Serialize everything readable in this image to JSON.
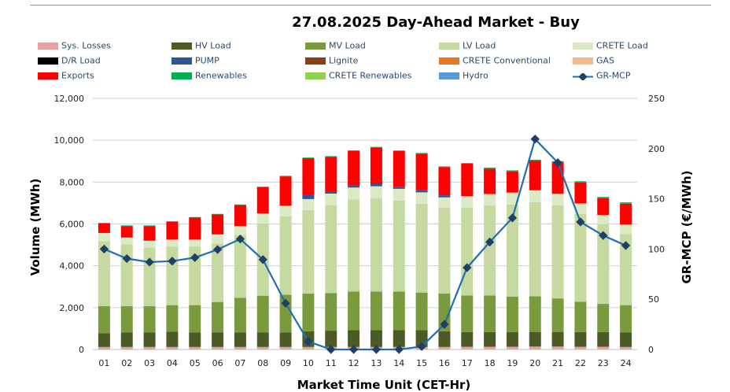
{
  "chart_data": {
    "type": "bar",
    "title": "27.08.2025  Day-Ahead Market - Buy",
    "xlabel": "Market Time Unit (CET-Hr)",
    "ylabel": "Volume (MWh)",
    "y2label": "GR-MCP (€/MWh)",
    "ylim": [
      0,
      12000
    ],
    "y2lim": [
      0,
      250
    ],
    "yticks": [
      "0",
      "2,000",
      "4,000",
      "6,000",
      "8,000",
      "10,000",
      "12,000"
    ],
    "y2ticks": [
      "0",
      "50",
      "100",
      "150",
      "200",
      "250"
    ],
    "categories": [
      "01",
      "02",
      "03",
      "04",
      "05",
      "06",
      "07",
      "08",
      "09",
      "10",
      "11",
      "12",
      "13",
      "14",
      "15",
      "16",
      "17",
      "18",
      "19",
      "20",
      "21",
      "22",
      "23",
      "24"
    ],
    "legend": [
      {
        "name": "Sys. Losses",
        "color": "#e6a1a1"
      },
      {
        "name": "HV Load",
        "color": "#4d5a26"
      },
      {
        "name": "MV Load",
        "color": "#7a9a3e"
      },
      {
        "name": "LV Load",
        "color": "#c5d9a0"
      },
      {
        "name": "CRETE Load",
        "color": "#dde8c5"
      },
      {
        "name": "D/R Load",
        "color": "#000000"
      },
      {
        "name": "PUMP",
        "color": "#2f5597"
      },
      {
        "name": "Lignite",
        "color": "#8c3f12"
      },
      {
        "name": "CRETE Conventional",
        "color": "#e87722"
      },
      {
        "name": "GAS",
        "color": "#f4b98a"
      },
      {
        "name": "Exports",
        "color": "#ff0000"
      },
      {
        "name": "Renewables",
        "color": "#00b050"
      },
      {
        "name": "CRETE Renewables",
        "color": "#92d050"
      },
      {
        "name": "Hydro",
        "color": "#5b9bd5"
      },
      {
        "name": "GR-MCP",
        "color": "#1f6fb2"
      }
    ],
    "series": [
      {
        "name": "Sys. Losses",
        "values": [
          120,
          120,
          120,
          120,
          120,
          120,
          120,
          120,
          120,
          120,
          120,
          120,
          120,
          120,
          120,
          120,
          130,
          130,
          130,
          140,
          140,
          130,
          130,
          120
        ]
      },
      {
        "name": "HV Load",
        "values": [
          650,
          700,
          700,
          730,
          700,
          700,
          700,
          700,
          700,
          750,
          780,
          800,
          800,
          800,
          800,
          750,
          700,
          700,
          700,
          700,
          700,
          700,
          700,
          700
        ]
      },
      {
        "name": "MV Load",
        "values": [
          1300,
          1250,
          1250,
          1270,
          1300,
          1450,
          1650,
          1750,
          1800,
          1800,
          1800,
          1850,
          1850,
          1850,
          1800,
          1800,
          1750,
          1750,
          1700,
          1700,
          1600,
          1450,
          1350,
          1300
        ]
      },
      {
        "name": "LV Load",
        "values": [
          3100,
          2950,
          2800,
          2800,
          2800,
          2800,
          3000,
          3450,
          3750,
          4000,
          4200,
          4400,
          4450,
          4350,
          4250,
          4100,
          4200,
          4300,
          4400,
          4500,
          4450,
          4200,
          3800,
          3400
        ]
      },
      {
        "name": "CRETE Load",
        "values": [
          400,
          330,
          330,
          330,
          330,
          430,
          430,
          480,
          500,
          520,
          550,
          570,
          580,
          560,
          540,
          500,
          550,
          550,
          570,
          570,
          550,
          500,
          450,
          450
        ]
      },
      {
        "name": "PUMP",
        "values": [
          0,
          0,
          0,
          0,
          0,
          0,
          0,
          0,
          0,
          200,
          110,
          100,
          100,
          100,
          100,
          100,
          0,
          0,
          0,
          0,
          0,
          0,
          0,
          0
        ]
      },
      {
        "name": "Exports",
        "values": [
          450,
          550,
          700,
          850,
          1050,
          950,
          1000,
          1250,
          1400,
          1750,
          1650,
          1650,
          1750,
          1700,
          1750,
          1350,
          1550,
          1200,
          1000,
          1400,
          1500,
          1000,
          800,
          1000
        ]
      },
      {
        "name": "Renewables",
        "values": [
          30,
          30,
          30,
          30,
          30,
          30,
          30,
          30,
          30,
          30,
          30,
          30,
          30,
          30,
          30,
          30,
          30,
          60,
          60,
          60,
          60,
          60,
          60,
          60
        ]
      }
    ],
    "line": {
      "name": "GR-MCP",
      "values": [
        100,
        90.5,
        87,
        88,
        91.5,
        99.5,
        110,
        89.5,
        46,
        8,
        0,
        0,
        0,
        0,
        3,
        25,
        81.5,
        107,
        131,
        209.5,
        186,
        127,
        113.5,
        103.5
      ]
    }
  }
}
